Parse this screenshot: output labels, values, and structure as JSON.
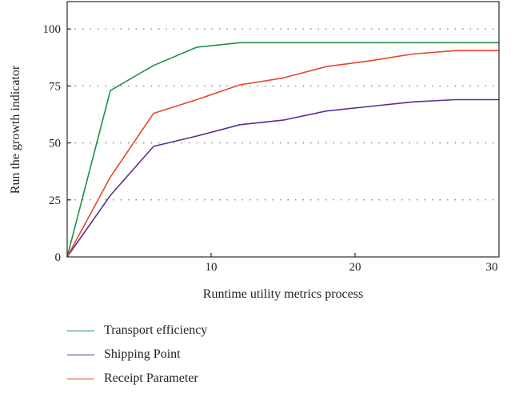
{
  "chart_data": {
    "type": "line",
    "xlabel": "Runtime utility metrics process",
    "ylabel": "Run the growth indicator",
    "xlim": [
      0,
      30
    ],
    "ylim": [
      0,
      112
    ],
    "xticks": [
      10,
      20,
      30
    ],
    "yticks": [
      0,
      25,
      50,
      75,
      100
    ],
    "grid": "horizontal dotted",
    "legend_position": "bottom-left",
    "series": [
      {
        "name": "Transport efficiency",
        "color": "#1f8f4a",
        "x": [
          0,
          3,
          6,
          9,
          12,
          15,
          18,
          21,
          24,
          27,
          30
        ],
        "y": [
          0,
          73,
          84,
          92,
          94,
          94,
          94,
          94,
          94,
          94,
          94
        ]
      },
      {
        "name": "Shipping Point",
        "color": "#5b2d8e",
        "x": [
          0,
          3,
          6,
          9,
          12,
          15,
          18,
          21,
          24,
          27,
          30
        ],
        "y": [
          0,
          27,
          48.5,
          53,
          58,
          60,
          64,
          66,
          68,
          69,
          69
        ]
      },
      {
        "name": "Receipt Parameter",
        "color": "#e8452a",
        "x": [
          0,
          3,
          6,
          9,
          12,
          15,
          18,
          21,
          24,
          27,
          30
        ],
        "y": [
          0,
          35,
          63,
          69,
          75.5,
          78.5,
          83.5,
          86,
          89,
          90.5,
          90.5
        ]
      }
    ]
  }
}
